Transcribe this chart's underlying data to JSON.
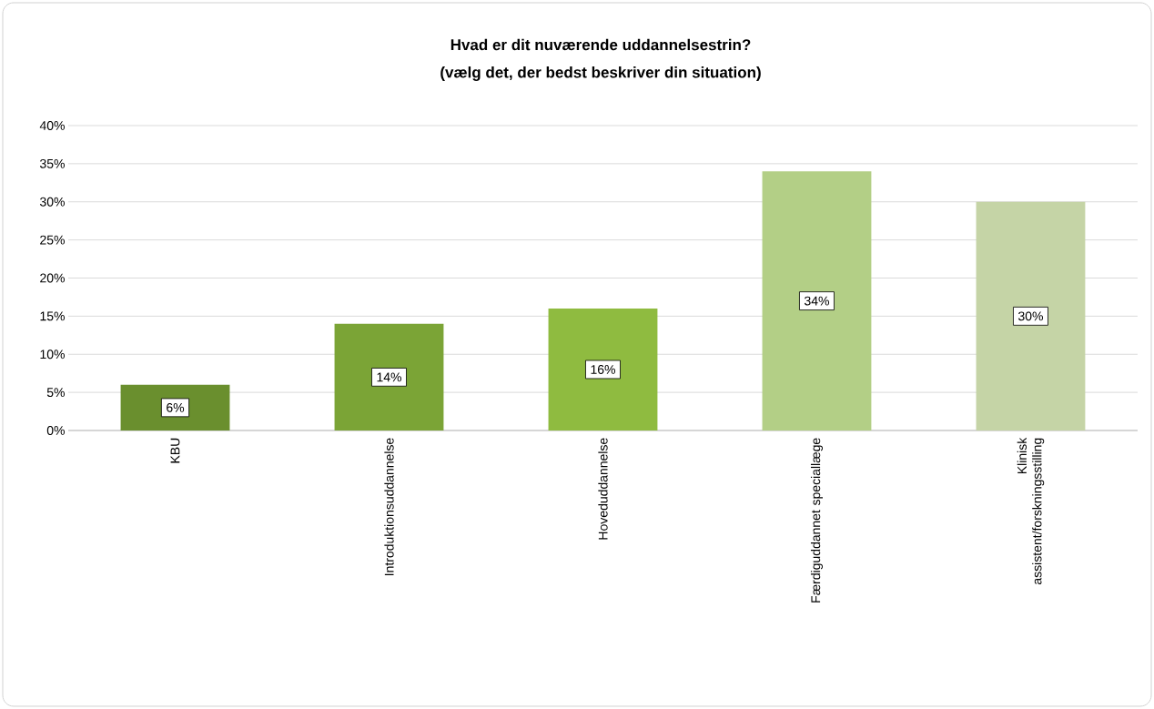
{
  "chart_data": {
    "type": "bar",
    "title": "Hvad er dit nuværende uddannelsestrin?",
    "subtitle": "(vælg det, der bedst beskriver din situation)",
    "categories": [
      "KBU",
      "Introduktionsuddannelse",
      "Hoveduddannelse",
      "Færdiguddannet speciallæge",
      "Klinisk assistent/forskningsstilling"
    ],
    "values": [
      6,
      14,
      16,
      34,
      30
    ],
    "value_labels": [
      "6%",
      "14%",
      "16%",
      "34%",
      "30%"
    ],
    "colors": [
      "#6a8f2e",
      "#7ba436",
      "#8fbb40",
      "#b3cf86",
      "#c5d4a6"
    ],
    "ylim": [
      0,
      40
    ],
    "yticks": [
      {
        "value": 0,
        "label": "0%"
      },
      {
        "value": 5,
        "label": "5%"
      },
      {
        "value": 10,
        "label": "10%"
      },
      {
        "value": 15,
        "label": "15%"
      },
      {
        "value": 20,
        "label": "20%"
      },
      {
        "value": 25,
        "label": "25%"
      },
      {
        "value": 30,
        "label": "30%"
      },
      {
        "value": 35,
        "label": "35%"
      },
      {
        "value": 40,
        "label": "40%"
      }
    ],
    "grid": "y"
  }
}
